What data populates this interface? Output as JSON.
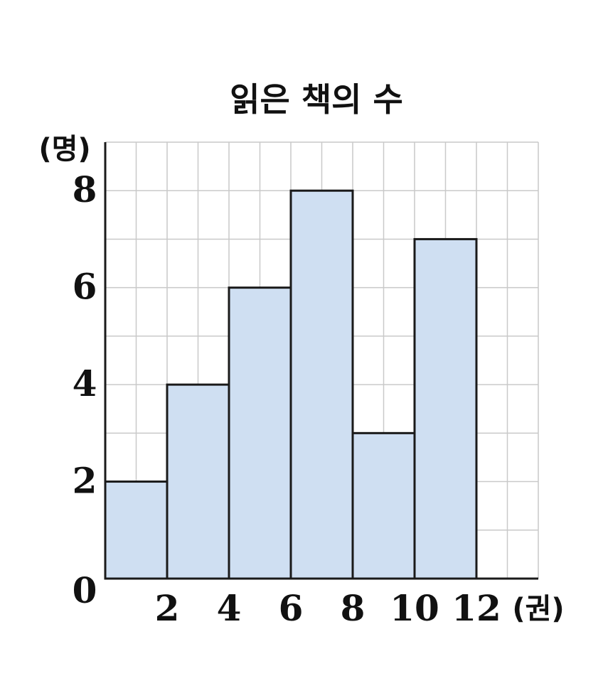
{
  "chart_data": {
    "type": "bar",
    "title": "읽은 책의 수",
    "ylabel": "(명)",
    "xlabel": "(권)",
    "x_bins": [
      [
        0,
        2
      ],
      [
        2,
        4
      ],
      [
        4,
        6
      ],
      [
        6,
        8
      ],
      [
        8,
        10
      ],
      [
        10,
        12
      ]
    ],
    "values": [
      2,
      4,
      6,
      8,
      3,
      7
    ],
    "xlim": [
      0,
      14
    ],
    "ylim": [
      0,
      9
    ],
    "origin_label": "0",
    "x_ticks": [
      2,
      4,
      6,
      8,
      10,
      12
    ],
    "y_ticks": [
      2,
      4,
      6,
      8
    ],
    "grid": true,
    "legend": "none",
    "colors": {
      "bar_fill": "#cfdff2",
      "bar_stroke": "#1a1a1a",
      "grid": "#c9c9c9"
    }
  }
}
